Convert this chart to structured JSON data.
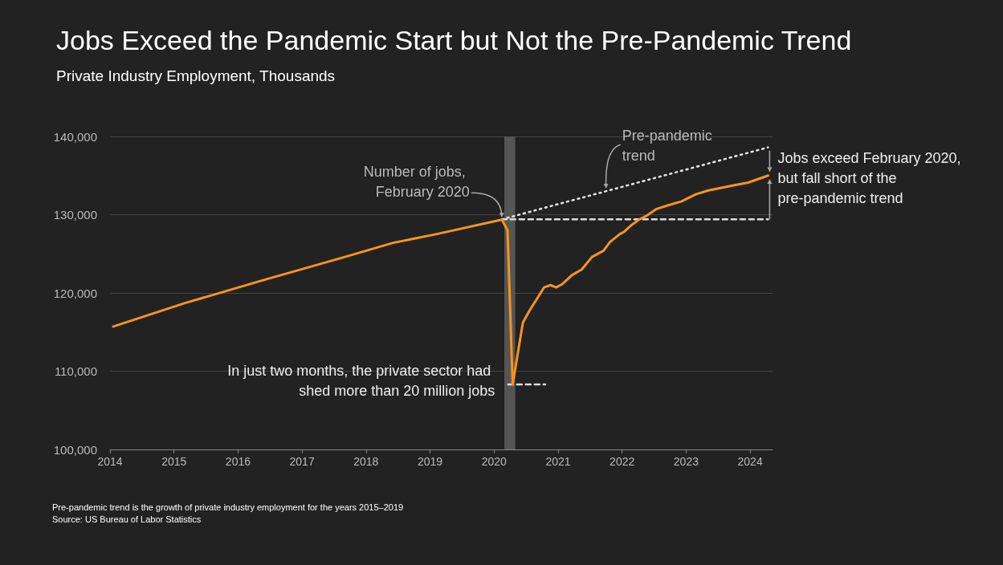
{
  "chart_data": {
    "type": "line",
    "title": "Jobs Exceed the Pandemic Start but Not the Pre-Pandemic Trend",
    "subtitle": "Private Industry Employment, Thousands",
    "series": [
      {
        "color": "#f7941d",
        "x": [
          2014.05,
          2015.17,
          2016.38,
          2017.67,
          2018.42,
          2019.09,
          2020.09,
          2020.12,
          2020.21,
          2020.29,
          2020.45,
          2020.55,
          2020.78,
          2020.88,
          2020.97,
          2021.06,
          2021.22,
          2021.37,
          2021.53,
          2021.71,
          2021.81,
          2021.96,
          2022.03,
          2022.15,
          2022.27,
          2022.37,
          2022.53,
          2022.72,
          2022.93,
          2023.15,
          2023.35,
          2023.77,
          2023.97,
          2024.28
        ],
        "values": [
          115700,
          118700,
          121600,
          124600,
          126400,
          127500,
          129300,
          129400,
          128000,
          108300,
          116200,
          117700,
          120700,
          121000,
          120700,
          121100,
          122300,
          123000,
          124600,
          125400,
          126500,
          127500,
          127800,
          128700,
          129400,
          129800,
          130700,
          131200,
          131700,
          132600,
          133100,
          133800,
          134100,
          135000
        ]
      },
      {
        "color": "#e6e6e6",
        "line_style": "dotted",
        "x": [
          2020.12,
          2024.28
        ],
        "values": [
          129400,
          138600
        ]
      },
      {
        "color": "#dddddd",
        "line_style": "dashed",
        "x": [
          2020.12,
          2024.28
        ],
        "values": [
          129400,
          129400
        ]
      },
      {
        "color": "#dddddd",
        "line_style": "dashed",
        "x": [
          2020.22,
          2020.8
        ],
        "values": [
          108300,
          108300
        ]
      }
    ],
    "xlim": [
      2014,
      2024.35
    ],
    "xticks": [
      2014,
      2015,
      2016,
      2017,
      2018,
      2019,
      2020,
      2021,
      2022,
      2023,
      2024
    ],
    "ylim": [
      100000,
      140000
    ],
    "yticks": [
      {
        "value": 100000,
        "label": "100,000"
      },
      {
        "value": 110000,
        "label": "110,000"
      },
      {
        "value": 120000,
        "label": "120,000"
      },
      {
        "value": 130000,
        "label": "130,000"
      },
      {
        "value": 140000,
        "label": "140,000"
      }
    ],
    "grid": "y",
    "marker": "none",
    "bands": [
      {
        "axis": "x",
        "from": 2020.16,
        "to": 2020.33,
        "color": "#555555"
      }
    ],
    "annotations": [
      {
        "text": "Pre-pandemic trend",
        "x": 2021.75,
        "y": 133000
      },
      {
        "text": "Number of jobs, February 2020",
        "x": 2020.12,
        "y": 129400
      },
      {
        "text": "Jobs exceed February 2020, but fall short of the pre-pandemic trend",
        "x": 2024.28,
        "y": 135000
      },
      {
        "text": "In just two months, the private sector had shed more than 20 million jobs",
        "x": 2020.29,
        "y": 108300
      },
      "Pre-pandemic trend is the growth of private industry employment for the years 2015–2019",
      "Source: US Bureau of Labor Statistics"
    ]
  }
}
